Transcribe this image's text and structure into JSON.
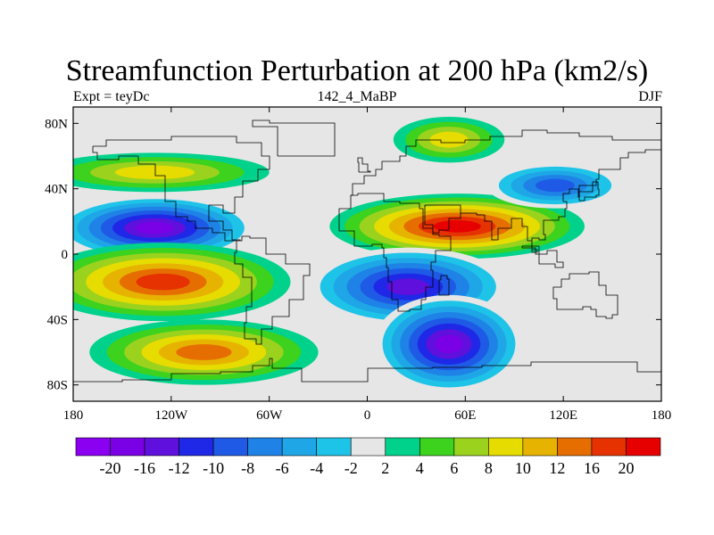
{
  "chart_data": {
    "type": "heatmap",
    "title": "Streamfunction Perturbation at 200 hPa (km2/s)",
    "subtitle_left": "Expt = teyDc",
    "subtitle_center": "142_4_MaBP",
    "subtitle_right": "DJF",
    "xlabel": "",
    "ylabel": "",
    "xlim": [
      -180,
      180
    ],
    "ylim": [
      -90,
      90
    ],
    "x_ticks": [
      {
        "value": -180,
        "label": "180"
      },
      {
        "value": -120,
        "label": "120W"
      },
      {
        "value": -60,
        "label": "60W"
      },
      {
        "value": 0,
        "label": "0"
      },
      {
        "value": 60,
        "label": "60E"
      },
      {
        "value": 120,
        "label": "120E"
      },
      {
        "value": 180,
        "label": "180"
      }
    ],
    "y_ticks": [
      {
        "value": 80,
        "label": "80N"
      },
      {
        "value": 40,
        "label": "40N"
      },
      {
        "value": 0,
        "label": "0"
      },
      {
        "value": -40,
        "label": "40S"
      },
      {
        "value": -80,
        "label": "80S"
      }
    ],
    "colorbar_levels": [
      "-20",
      "-16",
      "-12",
      "-10",
      "-8",
      "-6",
      "-4",
      "-2",
      "2",
      "4",
      "6",
      "8",
      "10",
      "12",
      "16",
      "20"
    ],
    "colorbar_colors": [
      "#8b00f0",
      "#7a00e6",
      "#5f10dc",
      "#1f28e6",
      "#1e5ae6",
      "#1e82e6",
      "#1ea6e6",
      "#1ec3e8",
      "#e6e6e6",
      "#00d28c",
      "#3cd21e",
      "#9bd21e",
      "#e6dc00",
      "#e6b400",
      "#e66e00",
      "#e63200",
      "#e60000"
    ],
    "features": [
      {
        "name": "NH Pacific low",
        "lon": -130,
        "lat": 16,
        "value": -22
      },
      {
        "name": "Asian-African high",
        "lon": 55,
        "lat": 17,
        "value": 21
      },
      {
        "name": "SH South Atlantic low",
        "lon": 25,
        "lat": -20,
        "value": -18
      },
      {
        "name": "SH Indian Ocean low",
        "lon": 50,
        "lat": -55,
        "value": -20
      },
      {
        "name": "SH Pacific high",
        "lon": -125,
        "lat": -17,
        "value": 17
      },
      {
        "name": "SH southeast Pacific high",
        "lon": -100,
        "lat": -60,
        "value": 14
      },
      {
        "name": "Arctic Eurasia ridge",
        "lon": 50,
        "lat": 70,
        "value": 8
      },
      {
        "name": "North Pacific ridge",
        "lon": -130,
        "lat": 50,
        "value": 9
      },
      {
        "name": "Far East low",
        "lon": 115,
        "lat": 42,
        "value": -10
      }
    ]
  }
}
